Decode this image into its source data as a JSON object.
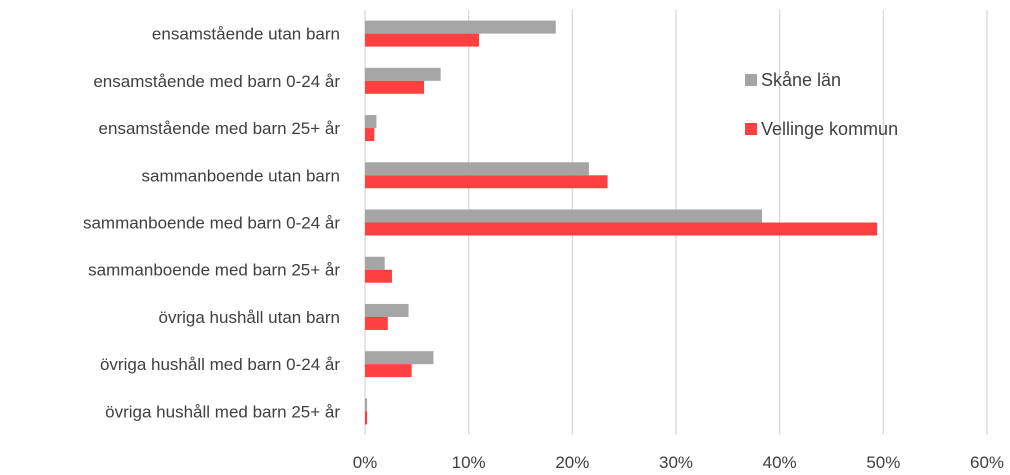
{
  "chart_data": {
    "type": "bar",
    "orientation": "horizontal",
    "categories": [
      "ensamstående utan barn",
      "ensamstående med barn 0-24 år",
      "ensamstående med barn  25+ år",
      "sammanboende utan barn",
      "sammanboende med barn 0-24 år",
      "sammanboende med barn 25+ år",
      "övriga hushåll utan barn",
      "övriga hushåll med barn 0-24 år",
      "övriga hushåll med barn 25+ år"
    ],
    "series": [
      {
        "name": "Skåne län",
        "color": "#a5a5a5",
        "values": [
          0.184,
          0.073,
          0.011,
          0.216,
          0.383,
          0.019,
          0.042,
          0.066,
          0.002
        ]
      },
      {
        "name": "Vellinge kommun",
        "color": "#ff4040",
        "values": [
          0.11,
          0.057,
          0.009,
          0.234,
          0.494,
          0.026,
          0.022,
          0.045,
          0.002
        ]
      }
    ],
    "x_ticks": [
      "0%",
      "10%",
      "20%",
      "30%",
      "40%",
      "50%",
      "60%"
    ],
    "xlim": [
      0,
      0.6
    ],
    "title": "",
    "xlabel": "",
    "ylabel": "",
    "grid": "vertical",
    "legend_position": "right-inside-top"
  }
}
